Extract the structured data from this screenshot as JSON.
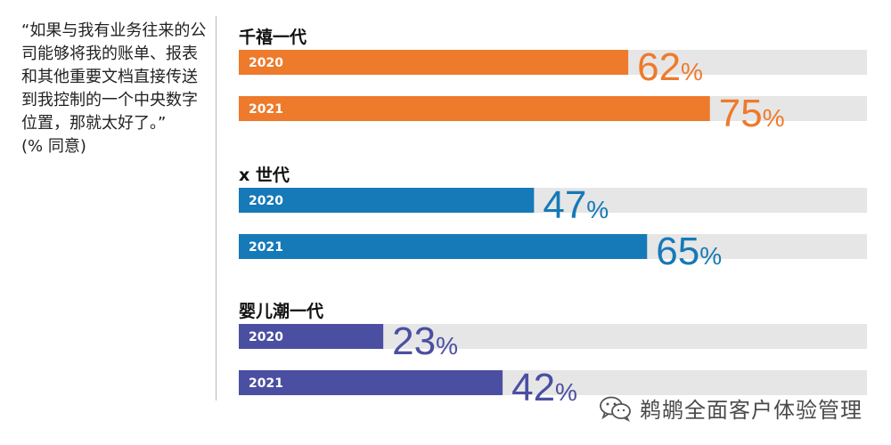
{
  "quote": {
    "text": "“如果与我有业务往来的公司能够将我的账单、报表和其他重要文档直接传送到我控制的一个中央数字位置，那就太好了。”",
    "note": "(% 同意)"
  },
  "watermark": {
    "text": "鹈鹕全面客户体验管理",
    "icon": "wechat-icon"
  },
  "colors": {
    "track": "#e6e6e6",
    "year_label": "#ffffff",
    "title": "#111111"
  },
  "chart_data": {
    "type": "bar",
    "orientation": "horizontal",
    "xlim": [
      0,
      100
    ],
    "value_suffix": "%",
    "groups": [
      {
        "title": "千禧一代",
        "color": "#ee7a2b",
        "bars": [
          {
            "label": "2020",
            "value": 62
          },
          {
            "label": "2021",
            "value": 75
          }
        ]
      },
      {
        "title": "x 世代",
        "color": "#1679b8",
        "bars": [
          {
            "label": "2020",
            "value": 47
          },
          {
            "label": "2021",
            "value": 65
          }
        ]
      },
      {
        "title": "婴儿潮一代",
        "color": "#4b4fa2",
        "bars": [
          {
            "label": "2020",
            "value": 23
          },
          {
            "label": "2021",
            "value": 42
          }
        ]
      }
    ]
  }
}
